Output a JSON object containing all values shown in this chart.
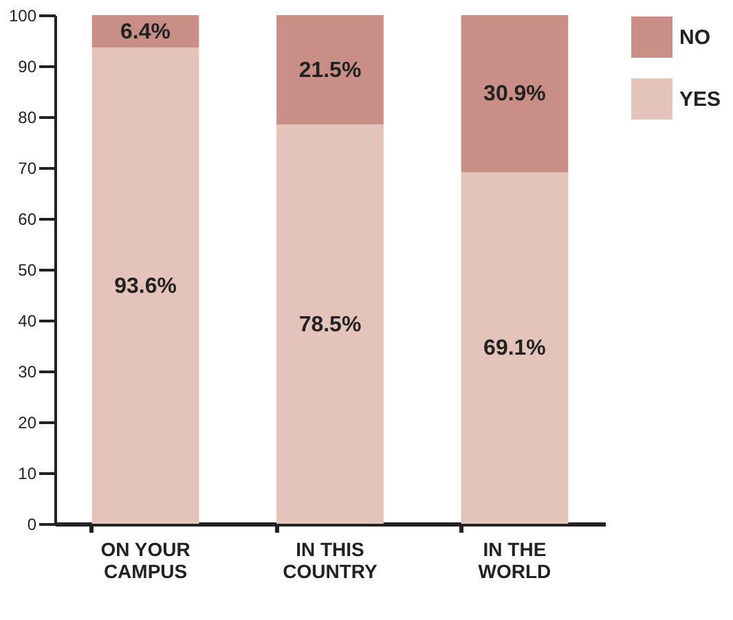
{
  "chart_data": {
    "type": "bar",
    "stacked": true,
    "categories": [
      "ON YOUR CAMPUS",
      "IN THIS COUNTRY",
      "IN THE WORLD"
    ],
    "series": [
      {
        "name": "YES",
        "color": "#e4c3ba",
        "values": [
          93.6,
          78.5,
          69.1
        ],
        "value_labels": [
          "93.6%",
          "78.5%",
          "69.1%"
        ]
      },
      {
        "name": "NO",
        "color": "#c98f86",
        "values": [
          6.4,
          21.5,
          30.9
        ],
        "value_labels": [
          "6.4%",
          "21.5%",
          "30.9%"
        ]
      }
    ],
    "ylim": [
      0,
      100
    ],
    "yticks": [
      0,
      10,
      20,
      30,
      40,
      50,
      60,
      70,
      80,
      90,
      100
    ],
    "grid": false,
    "legend": "top right"
  }
}
